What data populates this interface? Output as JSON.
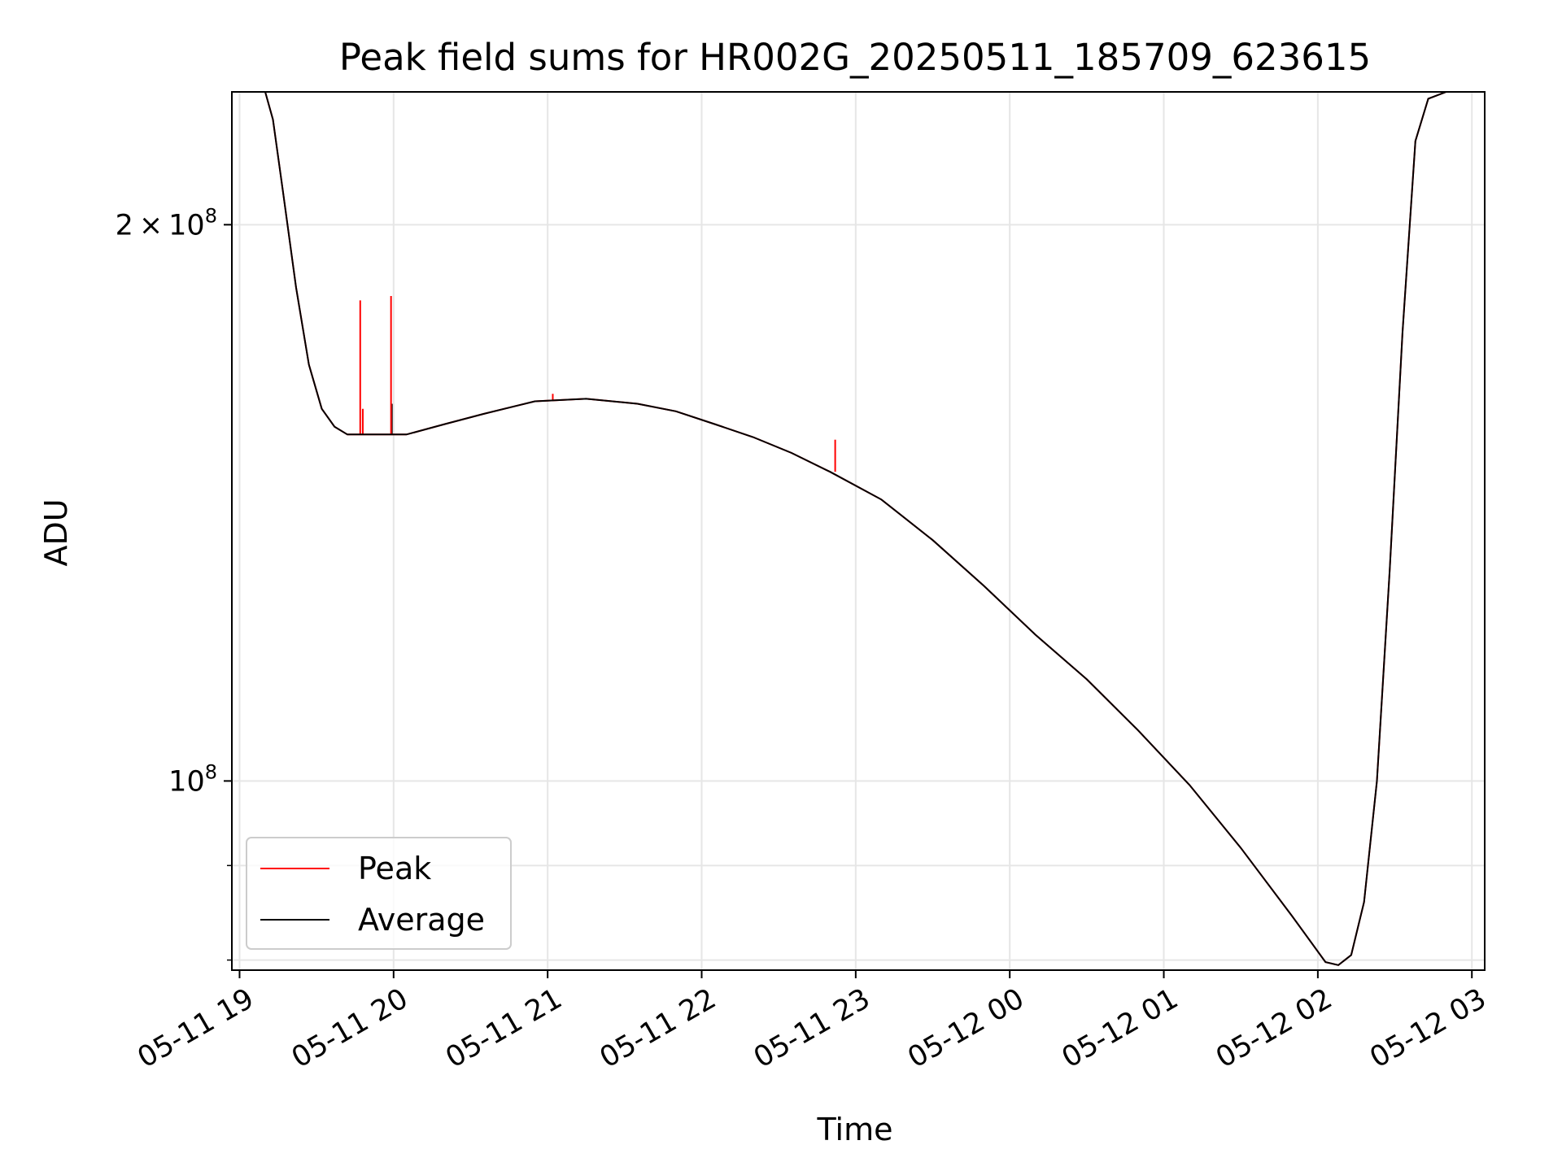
{
  "chart_data": {
    "type": "line",
    "title": "Peak field sums for HR002G_20250511_185709_623615",
    "xlabel": "Time",
    "ylabel": "ADU",
    "yscale": "log",
    "grid": true,
    "legend_position": "lower-left",
    "x_ticks": [
      "05-11 19",
      "05-11 20",
      "05-11 21",
      "05-11 22",
      "05-11 23",
      "05-12 00",
      "05-12 01",
      "05-12 02",
      "05-12 03"
    ],
    "x_range": [
      "2025-05-11 18:57",
      "2025-05-12 03:05"
    ],
    "ylim": [
      79000000,
      236000000
    ],
    "y_major_ticks": [
      {
        "value": 100000000,
        "mantissa": "",
        "base": "10",
        "exp": "8"
      },
      {
        "value": 200000000,
        "mantissa": "2",
        "base": "10",
        "exp": "8"
      }
    ],
    "y_minor_ticks": [
      80000000,
      90000000
    ],
    "x": [
      "2025-05-11 18:57",
      "2025-05-11 19:10",
      "2025-05-11 19:13",
      "2025-05-11 19:17",
      "2025-05-11 19:22",
      "2025-05-11 19:27",
      "2025-05-11 19:32",
      "2025-05-11 19:37",
      "2025-05-11 19:42",
      "2025-05-11 19:47",
      "2025-05-11 19:55",
      "2025-05-11 20:05",
      "2025-05-11 20:20",
      "2025-05-11 20:35",
      "2025-05-11 20:55",
      "2025-05-11 21:15",
      "2025-05-11 21:35",
      "2025-05-11 21:50",
      "2025-05-11 22:05",
      "2025-05-11 22:20",
      "2025-05-11 22:35",
      "2025-05-11 22:50",
      "2025-05-11 23:10",
      "2025-05-11 23:30",
      "2025-05-11 23:50",
      "2025-05-12 00:10",
      "2025-05-12 00:30",
      "2025-05-12 00:50",
      "2025-05-12 01:10",
      "2025-05-12 01:30",
      "2025-05-12 01:50",
      "2025-05-12 02:03",
      "2025-05-12 02:08",
      "2025-05-12 02:13",
      "2025-05-12 02:18",
      "2025-05-12 02:23",
      "2025-05-12 02:28",
      "2025-05-12 02:33",
      "2025-05-12 02:38",
      "2025-05-12 02:43",
      "2025-05-12 02:50",
      "2025-05-12 03:05"
    ],
    "series": [
      {
        "name": "Average",
        "color": "#000000",
        "values": [
          236000000,
          236000000,
          228000000,
          208000000,
          185000000,
          168000000,
          159000000,
          155500000,
          154000000,
          154000000,
          154000000,
          154000000,
          156000000,
          158000000,
          160500000,
          161000000,
          160000000,
          158500000,
          156000000,
          153500000,
          150500000,
          147000000,
          142000000,
          135000000,
          127500000,
          120000000,
          113500000,
          106500000,
          99500000,
          92000000,
          84500000,
          79800000,
          79500000,
          80500000,
          86000000,
          100000000,
          130000000,
          175000000,
          222000000,
          234000000,
          236000000,
          236000000
        ]
      },
      {
        "name": "Peak",
        "color": "#ff0000",
        "values": [
          236000000,
          236000000,
          228000000,
          208000000,
          185000000,
          168000000,
          159000000,
          155500000,
          154000000,
          154000000,
          154000000,
          154000000,
          156000000,
          158000000,
          160500000,
          161000000,
          160000000,
          158500000,
          156000000,
          153500000,
          150500000,
          147000000,
          142000000,
          135000000,
          127500000,
          120000000,
          113500000,
          106500000,
          99500000,
          92000000,
          84500000,
          79800000,
          79500000,
          80500000,
          86000000,
          100000000,
          130000000,
          175000000,
          222000000,
          234000000,
          236000000,
          236000000
        ],
        "spikes": [
          {
            "x": "2025-05-11 19:47",
            "base": 154000000,
            "value": 182000000
          },
          {
            "x": "2025-05-11 19:48",
            "base": 154000000,
            "value": 159000000
          },
          {
            "x": "2025-05-11 19:59",
            "base": 154000000,
            "value": 183000000
          },
          {
            "x": "2025-05-11 21:02",
            "base": 160500000,
            "value": 162000000
          },
          {
            "x": "2025-05-11 22:52",
            "base": 147000000,
            "value": 153000000
          }
        ]
      }
    ],
    "average_spikes": [
      {
        "x": "2025-05-11 19:59",
        "base": 154000000,
        "value": 160000000
      }
    ]
  }
}
